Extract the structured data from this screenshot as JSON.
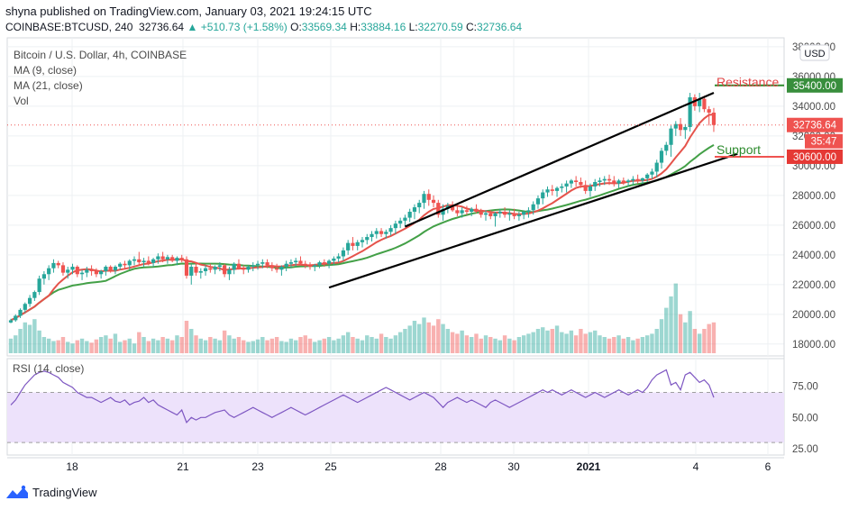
{
  "header": {
    "published": "shyna published on TradingView.com, January 03, 2021 19:24:15 UTC",
    "symbol": "COINBASE:BTCUSD, 240",
    "last": "32736.64",
    "change": "+510.73 (+1.58%)",
    "open_label": "O:",
    "open": "33569.34",
    "high_label": "H:",
    "high": "33884.16",
    "low_label": "L:",
    "low": "32270.59",
    "close_label": "C:",
    "close": "32736.64"
  },
  "legend": {
    "title": "Bitcoin / U.S. Dollar, 4h, COINBASE",
    "ma9": "MA (9, close)",
    "ma21": "MA (21, close)",
    "vol": "Vol",
    "rsi": "RSI (14, close)"
  },
  "annotations": {
    "resistance": "Resistance",
    "support": "Support",
    "resistance_price": "35400.00",
    "support_price": "30600.00",
    "last_price": "32736.64",
    "countdown": "35:47",
    "currency": "USD"
  },
  "colors": {
    "up": "#26a69a",
    "down": "#ef5350",
    "ma9": "#e5534b",
    "ma21": "#43a047",
    "rsi": "#7e57c2",
    "resistance": "#e04444",
    "support": "#2e8b2e"
  },
  "footer": {
    "brand": "TradingView"
  },
  "chart_data": {
    "type": "candlestick",
    "price_axis": {
      "ticks": [
        18000,
        20000,
        22000,
        24000,
        26000,
        28000,
        30000,
        32000,
        34000,
        36000,
        38000
      ],
      "ylim": [
        17200,
        38600
      ]
    },
    "rsi_axis": {
      "ticks": [
        25,
        50,
        75
      ],
      "ylim": [
        20,
        97
      ],
      "band": [
        30,
        70
      ]
    },
    "x_labels": [
      "18",
      "21",
      "23",
      "25",
      "28",
      "30",
      "2021",
      "4",
      "6"
    ],
    "candles": [
      [
        19450,
        19400,
        19700,
        19600
      ],
      [
        19600,
        19500,
        20000,
        19900
      ],
      [
        19900,
        19750,
        20400,
        20300
      ],
      [
        20300,
        20100,
        20800,
        20700
      ],
      [
        20700,
        20500,
        21300,
        21100
      ],
      [
        21100,
        20900,
        21600,
        21500
      ],
      [
        21500,
        21300,
        22600,
        22400
      ],
      [
        22400,
        22000,
        22900,
        22700
      ],
      [
        22700,
        22300,
        23300,
        23100
      ],
      [
        23100,
        22800,
        23700,
        23450
      ],
      [
        23450,
        23100,
        23600,
        23300
      ],
      [
        23300,
        22600,
        23500,
        22800
      ],
      [
        22800,
        22400,
        23200,
        23000
      ],
      [
        23000,
        22700,
        23400,
        23200
      ],
      [
        23200,
        22500,
        23300,
        22700
      ],
      [
        22700,
        22300,
        23000,
        22800
      ],
      [
        22800,
        22500,
        23200,
        23000
      ],
      [
        23000,
        22600,
        23300,
        22900
      ],
      [
        22900,
        22500,
        23100,
        22700
      ],
      [
        22700,
        22400,
        23000,
        22900
      ],
      [
        22900,
        22600,
        23300,
        23200
      ],
      [
        23200,
        22800,
        23300,
        22950
      ],
      [
        22950,
        22700,
        23300,
        23200
      ],
      [
        23200,
        23000,
        23500,
        23400
      ],
      [
        23400,
        23100,
        23600,
        23300
      ],
      [
        23300,
        23000,
        23700,
        23600
      ],
      [
        23600,
        23300,
        23900,
        23700
      ],
      [
        23700,
        23300,
        24200,
        23500
      ],
      [
        23500,
        23200,
        23800,
        23600
      ],
      [
        23600,
        23300,
        23900,
        23450
      ],
      [
        23450,
        23200,
        23800,
        23700
      ],
      [
        23700,
        23400,
        24100,
        23900
      ],
      [
        23900,
        23500,
        24200,
        23700
      ],
      [
        23700,
        23400,
        24000,
        23850
      ],
      [
        23850,
        23500,
        24000,
        23600
      ],
      [
        23600,
        23300,
        23900,
        23800
      ],
      [
        23800,
        23500,
        24000,
        23700
      ],
      [
        23700,
        22400,
        23900,
        22600
      ],
      [
        22600,
        22000,
        23400,
        23200
      ],
      [
        23200,
        22600,
        23500,
        22800
      ],
      [
        22800,
        22400,
        23100,
        22900
      ],
      [
        22900,
        22600,
        23300,
        23100
      ],
      [
        23100,
        22800,
        23400,
        23000
      ],
      [
        23000,
        22700,
        23300,
        23200
      ],
      [
        23200,
        22900,
        23500,
        23300
      ],
      [
        23300,
        22500,
        23400,
        22700
      ],
      [
        22700,
        22300,
        23200,
        23000
      ],
      [
        23000,
        22700,
        23500,
        23400
      ],
      [
        23400,
        23000,
        23700,
        23100
      ],
      [
        23100,
        22700,
        23300,
        23000
      ],
      [
        23000,
        22800,
        23300,
        23200
      ],
      [
        23200,
        22900,
        23500,
        23300
      ],
      [
        23300,
        23000,
        23600,
        23400
      ],
      [
        23400,
        23100,
        23700,
        23500
      ],
      [
        23500,
        23100,
        23700,
        23300
      ],
      [
        23300,
        22900,
        23500,
        23100
      ],
      [
        23100,
        22800,
        23400,
        23000
      ],
      [
        23000,
        22600,
        23300,
        23200
      ],
      [
        23200,
        22900,
        23600,
        23400
      ],
      [
        23400,
        23100,
        23700,
        23500
      ],
      [
        23500,
        23200,
        23800,
        23600
      ],
      [
        23600,
        23300,
        23900,
        23400
      ],
      [
        23400,
        23100,
        23600,
        23300
      ],
      [
        23300,
        23000,
        23500,
        23200
      ],
      [
        23200,
        22900,
        23400,
        23300
      ],
      [
        23300,
        23100,
        23600,
        23500
      ],
      [
        23500,
        23200,
        23700,
        23400
      ],
      [
        23400,
        23100,
        23700,
        23600
      ],
      [
        23600,
        23300,
        23900,
        23750
      ],
      [
        23750,
        23500,
        24100,
        23900
      ],
      [
        23900,
        23600,
        24500,
        24300
      ],
      [
        24300,
        24000,
        25000,
        24800
      ],
      [
        24800,
        24300,
        25200,
        24600
      ],
      [
        24600,
        24300,
        25000,
        24850
      ],
      [
        24850,
        24500,
        25200,
        25000
      ],
      [
        25000,
        24700,
        25400,
        25200
      ],
      [
        25200,
        24900,
        25600,
        25400
      ],
      [
        25400,
        25100,
        25800,
        25600
      ],
      [
        25600,
        25200,
        25800,
        25400
      ],
      [
        25400,
        25100,
        25700,
        25550
      ],
      [
        25550,
        25300,
        26000,
        25800
      ],
      [
        25800,
        25400,
        26300,
        26100
      ],
      [
        26100,
        25800,
        26500,
        26300
      ],
      [
        26300,
        25900,
        26700,
        26500
      ],
      [
        26500,
        26200,
        27100,
        26900
      ],
      [
        26900,
        26400,
        27400,
        27200
      ],
      [
        27200,
        26800,
        27700,
        27500
      ],
      [
        27500,
        27100,
        28300,
        28100
      ],
      [
        28100,
        27300,
        28400,
        27700
      ],
      [
        27700,
        27200,
        28000,
        27500
      ],
      [
        27500,
        26500,
        27700,
        26700
      ],
      [
        26700,
        26300,
        27400,
        27100
      ],
      [
        27100,
        26800,
        27500,
        27300
      ],
      [
        27300,
        26900,
        27600,
        27000
      ],
      [
        27000,
        26600,
        27300,
        26800
      ],
      [
        26800,
        26500,
        27200,
        27000
      ],
      [
        27000,
        26700,
        27300,
        26900
      ],
      [
        26900,
        26600,
        27200,
        27100
      ],
      [
        27100,
        26800,
        27400,
        26900
      ],
      [
        26900,
        26500,
        27100,
        26700
      ],
      [
        26700,
        26300,
        27000,
        26800
      ],
      [
        26800,
        26400,
        27000,
        26600
      ],
      [
        26600,
        25900,
        26900,
        26800
      ],
      [
        26800,
        26500,
        27100,
        26900
      ],
      [
        26900,
        26500,
        27200,
        26700
      ],
      [
        26700,
        26300,
        27000,
        26800
      ],
      [
        26800,
        26400,
        27100,
        26600
      ],
      [
        26600,
        26300,
        26900,
        26700
      ],
      [
        26700,
        26400,
        27000,
        26900
      ],
      [
        26900,
        26500,
        27200,
        27000
      ],
      [
        27000,
        26700,
        27600,
        27400
      ],
      [
        27400,
        27100,
        28000,
        27800
      ],
      [
        27800,
        27400,
        28400,
        28200
      ],
      [
        28200,
        27900,
        28600,
        28400
      ],
      [
        28400,
        28000,
        28700,
        28300
      ],
      [
        28300,
        27900,
        28600,
        28500
      ],
      [
        28500,
        28200,
        28800,
        28600
      ],
      [
        28600,
        28200,
        29000,
        28800
      ],
      [
        28800,
        28500,
        29100,
        29000
      ],
      [
        29000,
        28600,
        29300,
        28900
      ],
      [
        28900,
        28500,
        29200,
        28700
      ],
      [
        28700,
        28100,
        29000,
        28300
      ],
      [
        28300,
        27900,
        28800,
        28600
      ],
      [
        28600,
        28300,
        29100,
        28900
      ],
      [
        28900,
        28600,
        29200,
        29000
      ],
      [
        29000,
        28700,
        29300,
        29100
      ],
      [
        29100,
        28700,
        29400,
        29000
      ],
      [
        29000,
        28600,
        29300,
        28800
      ],
      [
        28800,
        28500,
        29100,
        29000
      ],
      [
        29000,
        28700,
        29200,
        28900
      ],
      [
        28900,
        28600,
        29100,
        29000
      ],
      [
        29000,
        28700,
        29300,
        29100
      ],
      [
        29100,
        28800,
        29400,
        29000
      ],
      [
        29000,
        28700,
        29200,
        29150
      ],
      [
        29150,
        28900,
        29500,
        29400
      ],
      [
        29400,
        29100,
        29800,
        29600
      ],
      [
        29600,
        29200,
        30400,
        30200
      ],
      [
        30200,
        29800,
        31200,
        31000
      ],
      [
        31000,
        30700,
        31600,
        31400
      ],
      [
        31400,
        30600,
        32700,
        32500
      ],
      [
        32500,
        32000,
        33000,
        32800
      ],
      [
        32800,
        32000,
        33200,
        32400
      ],
      [
        32400,
        31800,
        32800,
        32600
      ],
      [
        32600,
        32300,
        34900,
        34600
      ],
      [
        34600,
        33700,
        34800,
        34000
      ],
      [
        34000,
        33600,
        34900,
        34500
      ],
      [
        34500,
        33600,
        34700,
        33800
      ],
      [
        33800,
        32700,
        34000,
        33569
      ],
      [
        33569,
        32270,
        33884,
        32736
      ]
    ],
    "volume": [
      0.18,
      0.22,
      0.3,
      0.38,
      0.35,
      0.42,
      0.28,
      0.2,
      0.18,
      0.15,
      0.16,
      0.2,
      0.14,
      0.12,
      0.16,
      0.18,
      0.15,
      0.13,
      0.17,
      0.2,
      0.22,
      0.18,
      0.24,
      0.14,
      0.16,
      0.18,
      0.12,
      0.26,
      0.2,
      0.15,
      0.18,
      0.16,
      0.2,
      0.18,
      0.16,
      0.22,
      0.2,
      0.4,
      0.3,
      0.22,
      0.18,
      0.16,
      0.2,
      0.18,
      0.16,
      0.28,
      0.22,
      0.18,
      0.2,
      0.16,
      0.14,
      0.15,
      0.17,
      0.2,
      0.16,
      0.18,
      0.2,
      0.15,
      0.14,
      0.18,
      0.16,
      0.2,
      0.22,
      0.18,
      0.14,
      0.16,
      0.18,
      0.2,
      0.16,
      0.18,
      0.22,
      0.26,
      0.2,
      0.18,
      0.16,
      0.22,
      0.2,
      0.18,
      0.24,
      0.2,
      0.18,
      0.22,
      0.26,
      0.3,
      0.34,
      0.4,
      0.36,
      0.44,
      0.38,
      0.34,
      0.42,
      0.36,
      0.3,
      0.26,
      0.24,
      0.28,
      0.22,
      0.2,
      0.24,
      0.18,
      0.22,
      0.2,
      0.18,
      0.16,
      0.22,
      0.18,
      0.16,
      0.2,
      0.22,
      0.24,
      0.26,
      0.3,
      0.32,
      0.28,
      0.3,
      0.34,
      0.26,
      0.24,
      0.28,
      0.22,
      0.3,
      0.24,
      0.26,
      0.28,
      0.22,
      0.2,
      0.18,
      0.2,
      0.22,
      0.18,
      0.2,
      0.16,
      0.18,
      0.2,
      0.22,
      0.24,
      0.3,
      0.42,
      0.56,
      0.7,
      0.86,
      0.48,
      0.38,
      0.52,
      0.3,
      0.24,
      0.3,
      0.36,
      0.38
    ],
    "rsi": [
      60,
      64,
      70,
      76,
      80,
      84,
      86,
      87,
      86,
      84,
      82,
      78,
      76,
      74,
      70,
      68,
      66,
      66,
      64,
      62,
      64,
      66,
      63,
      62,
      64,
      60,
      62,
      63,
      66,
      62,
      64,
      60,
      58,
      56,
      54,
      52,
      56,
      46,
      50,
      48,
      50,
      50,
      52,
      54,
      55,
      56,
      52,
      50,
      52,
      54,
      56,
      58,
      56,
      54,
      52,
      50,
      52,
      54,
      56,
      58,
      56,
      54,
      52,
      54,
      56,
      58,
      60,
      62,
      64,
      66,
      68,
      66,
      64,
      62,
      64,
      66,
      68,
      70,
      72,
      74,
      72,
      70,
      68,
      66,
      64,
      66,
      68,
      70,
      68,
      66,
      62,
      58,
      62,
      64,
      66,
      64,
      62,
      64,
      62,
      60,
      58,
      62,
      64,
      62,
      60,
      58,
      60,
      62,
      64,
      66,
      68,
      70,
      72,
      70,
      72,
      70,
      68,
      70,
      72,
      70,
      68,
      66,
      68,
      70,
      68,
      66,
      68,
      70,
      72,
      70,
      68,
      70,
      72,
      70,
      74,
      80,
      84,
      86,
      88,
      76,
      78,
      72,
      84,
      86,
      82,
      78,
      80,
      76,
      66
    ],
    "ma9_label": "MA (9, close)",
    "ma21_label": "MA (21, close)",
    "trendlines": [
      {
        "name": "upper-channel",
        "from": [
          83,
          25900
        ],
        "to": [
          148,
          34900
        ]
      },
      {
        "name": "lower-channel",
        "from": [
          67,
          21800
        ],
        "to": [
          153,
          30800
        ]
      }
    ],
    "levels": {
      "resistance": 35400,
      "support": 30600,
      "last": 32736.64
    }
  }
}
